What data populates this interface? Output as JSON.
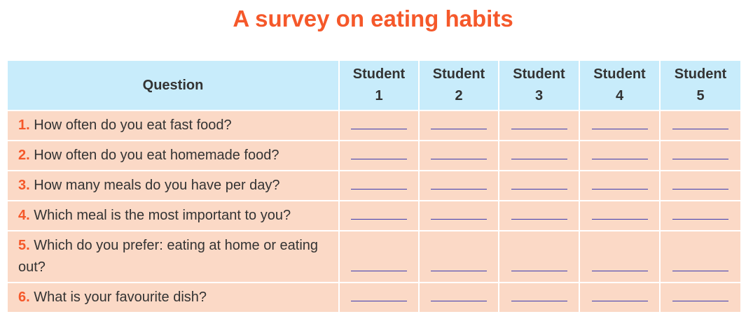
{
  "title": "A survey on eating habits",
  "table": {
    "headers": [
      "Question",
      "Student\n1",
      "Student\n2",
      "Student\n3",
      "Student\n4",
      "Student\n5"
    ],
    "header_parts": [
      {
        "word": "Student",
        "num": "1"
      },
      {
        "word": "Student",
        "num": "2"
      },
      {
        "word": "Student",
        "num": "3"
      },
      {
        "word": "Student",
        "num": "4"
      },
      {
        "word": "Student",
        "num": "5"
      }
    ],
    "question_header": "Question",
    "rows": [
      {
        "num": "1.",
        "text": " How often do you eat fast food?"
      },
      {
        "num": "2.",
        "text": " How often do you eat homemade food?"
      },
      {
        "num": "3.",
        "text": " How many meals do you have per day?"
      },
      {
        "num": "4.",
        "text": " Which meal is the most important to you?"
      },
      {
        "num": "5.",
        "text": " Which do you prefer: eating at home or eating out?"
      },
      {
        "num": "6.",
        "text": " What is your favourite dish?"
      }
    ]
  },
  "colors": {
    "accent": "#f5582a",
    "header_bg": "#c8ecfb",
    "row_bg": "#fbd9c6",
    "blank_line": "#3a3ab0"
  }
}
